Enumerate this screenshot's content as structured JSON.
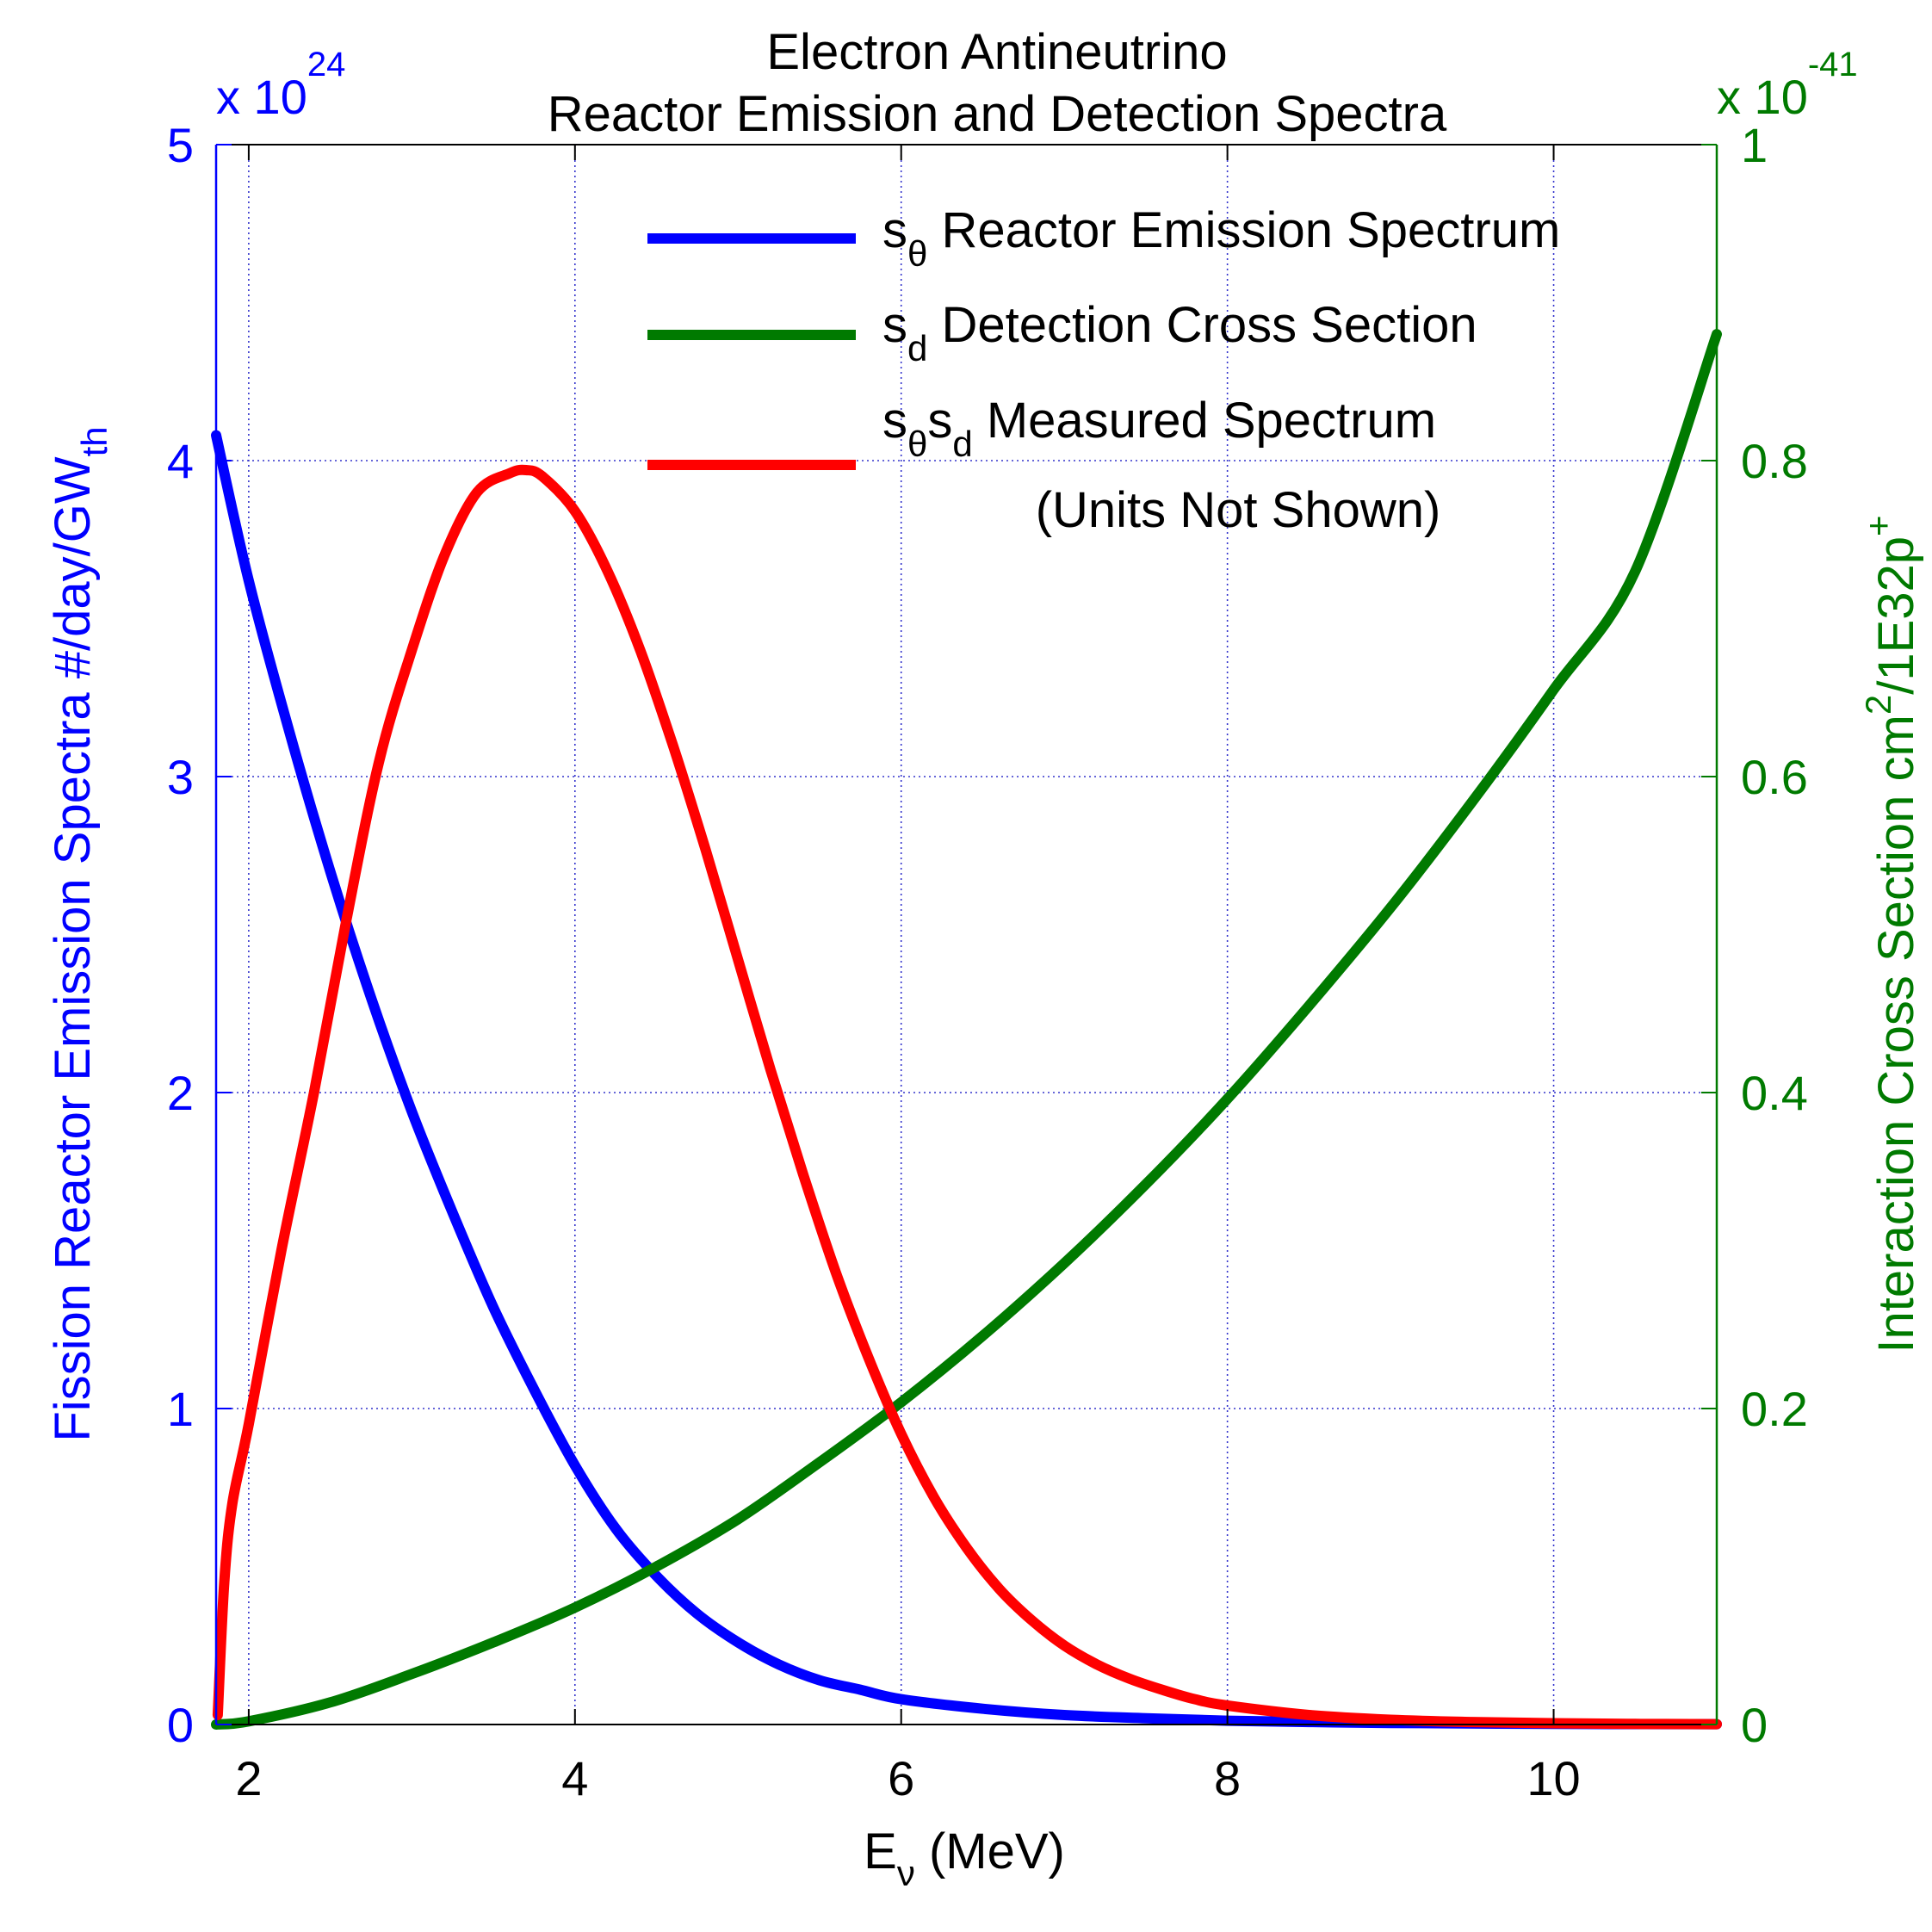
{
  "chart_data": {
    "type": "line",
    "title": [
      "Electron Antineutrino",
      "Reactor Emission and Detection Spectra"
    ],
    "xlabel": {
      "main": "E",
      "sub": "ν",
      "tail": " (MeV)"
    },
    "ylabel_left": {
      "main": "Fission Reactor Emission Spectra #/day/GW",
      "sub": "th"
    },
    "ylabel_right": {
      "main": "Interaction Cross Section cm",
      "sup": "2",
      "mid": "/1E32p",
      "sup2": "+"
    },
    "left_multiplier": {
      "base": "x 10",
      "exp": "24"
    },
    "right_multiplier": {
      "base": "x 10",
      "exp": "-41"
    },
    "xlim": [
      1.8,
      11
    ],
    "ylim_left": [
      0,
      5
    ],
    "ylim_right": [
      0,
      1
    ],
    "x_ticks": [
      "2",
      "4",
      "6",
      "8",
      "10"
    ],
    "x_tick_values": [
      2,
      4,
      6,
      8,
      10
    ],
    "left_ticks": [
      "0",
      "1",
      "2",
      "3",
      "4",
      "5"
    ],
    "left_tick_values": [
      0,
      1,
      2,
      3,
      4,
      5
    ],
    "right_ticks": [
      "0",
      "0.2",
      "0.4",
      "0.6",
      "0.8",
      "1"
    ],
    "right_tick_values": [
      0,
      0.2,
      0.4,
      0.6,
      0.8,
      1
    ],
    "grid": true,
    "legend_position": "top-right",
    "legend": [
      {
        "pre": "s",
        "sub1": "θ",
        "mid": "",
        "sub2": "",
        "text": " Reactor Emission Spectrum"
      },
      {
        "pre": "s",
        "sub1": "d",
        "mid": "",
        "sub2": "",
        "text": " Detection Cross Section"
      },
      {
        "pre": "s",
        "sub1": "θ",
        "mid": "s",
        "sub2": "d",
        "text": " Measured Spectrum"
      }
    ],
    "legend_note": "(Units Not Shown)",
    "series": [
      {
        "name": "sθ Reactor Emission Spectrum",
        "color": "#0000ff",
        "axis": "left",
        "x": [
          1.8,
          2.0,
          2.25,
          2.5,
          2.75,
          3.0,
          3.25,
          3.5,
          3.75,
          4.0,
          4.25,
          4.5,
          4.75,
          5.0,
          5.25,
          5.5,
          5.75,
          6.0,
          6.5,
          7.0,
          7.5,
          8.0,
          8.5,
          9.0,
          10.0,
          11.0
        ],
        "y": [
          4.08,
          3.62,
          3.14,
          2.7,
          2.3,
          1.94,
          1.62,
          1.32,
          1.06,
          0.82,
          0.62,
          0.47,
          0.35,
          0.26,
          0.19,
          0.14,
          0.11,
          0.08,
          0.05,
          0.03,
          0.02,
          0.012,
          0.008,
          0.005,
          0.002,
          0.001
        ]
      },
      {
        "name": "sd Detection Cross Section",
        "color": "#007a00",
        "axis": "right",
        "x": [
          1.8,
          2.0,
          2.5,
          3.0,
          3.5,
          4.0,
          4.5,
          5.0,
          5.5,
          6.0,
          6.5,
          7.0,
          7.5,
          8.0,
          8.5,
          9.0,
          9.5,
          10.0,
          10.5,
          11.0
        ],
        "y": [
          0.0,
          0.002,
          0.014,
          0.032,
          0.052,
          0.074,
          0.1,
          0.13,
          0.166,
          0.204,
          0.246,
          0.292,
          0.342,
          0.396,
          0.455,
          0.517,
          0.584,
          0.655,
          0.73,
          0.88
        ]
      },
      {
        "name": "sθsd Measured Spectrum",
        "color": "#ff0000",
        "axis": "left",
        "x": [
          1.81,
          1.85,
          1.9,
          2.0,
          2.2,
          2.4,
          2.6,
          2.8,
          3.0,
          3.2,
          3.4,
          3.6,
          3.7,
          3.8,
          4.0,
          4.2,
          4.4,
          4.6,
          4.8,
          5.0,
          5.2,
          5.4,
          5.6,
          5.8,
          6.0,
          6.2,
          6.4,
          6.6,
          6.8,
          7.0,
          7.2,
          7.4,
          7.6,
          7.8,
          8.0,
          8.5,
          9.0,
          9.5,
          10.0,
          10.5,
          11.0
        ],
        "y": [
          0.03,
          0.45,
          0.7,
          0.95,
          1.5,
          2.0,
          2.55,
          3.05,
          3.4,
          3.7,
          3.9,
          3.96,
          3.97,
          3.95,
          3.84,
          3.65,
          3.4,
          3.1,
          2.77,
          2.42,
          2.07,
          1.74,
          1.43,
          1.16,
          0.92,
          0.72,
          0.56,
          0.43,
          0.33,
          0.25,
          0.19,
          0.145,
          0.11,
          0.08,
          0.06,
          0.03,
          0.015,
          0.008,
          0.004,
          0.002,
          0.001
        ]
      }
    ]
  }
}
